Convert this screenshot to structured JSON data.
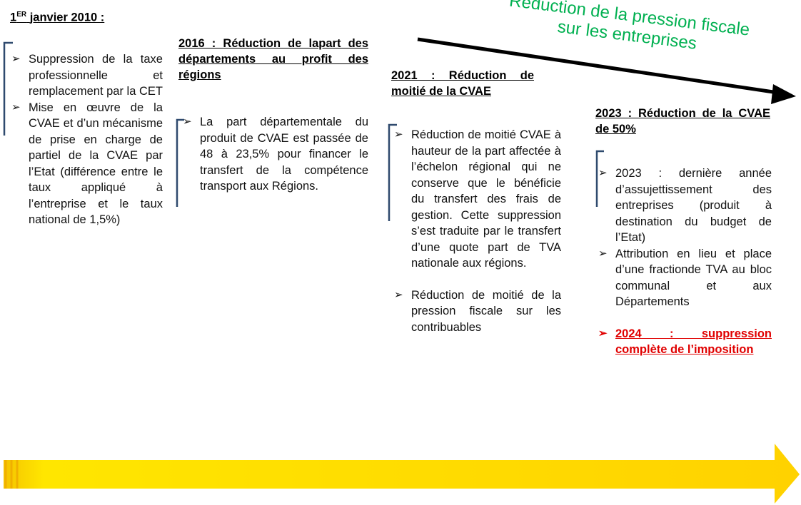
{
  "banner": {
    "text": "Réduction de la pression fiscale sur les entreprises"
  },
  "columns": [
    {
      "heading": {
        "main": "1",
        "sup": "ER",
        "rest": "janvier 2010 :"
      },
      "bullets": [
        "Suppression de la taxe professionnelle et remplacement par la CET",
        "Mise en œuvre de la CVAE et d’un mécanisme de prise en charge de partiel de la CVAE par l’Etat (différence entre le taux appliqué à l’entreprise et le taux national de 1,5%)"
      ]
    },
    {
      "heading": {
        "text": "2016 : Réduction de lapart des départements au profit des régions"
      },
      "bullets": [
        "La part départementale du produit de CVAE est passée de 48 à 23,5% pour financer le transfert de la compétence transport aux Régions."
      ]
    },
    {
      "heading": {
        "text": "2021 : Réduction de moitié de la CVAE"
      },
      "bullets": [
        "Réduction de moitié CVAE à hauteur de la part affectée à l’échelon régional qui ne conserve que le bénéficie du transfert des frais de gestion. Cette suppression s’est traduite par le transfert d’une quote part de TVA nationale aux régions.",
        "Réduction de moitié de la pression fiscale sur les contribuables"
      ]
    },
    {
      "heading": {
        "text": "2023 : Réduction de la CVAE de 50%"
      },
      "bullets": [
        "2023 : dernière année d’assujettissement des entreprises (produit à destination du budget de l’Etat)",
        "Attribution en lieu et place d’une fractionde TVA au bloc communal et aux Départements",
        "2024 : suppression complète de l’imposition"
      ]
    }
  ]
}
